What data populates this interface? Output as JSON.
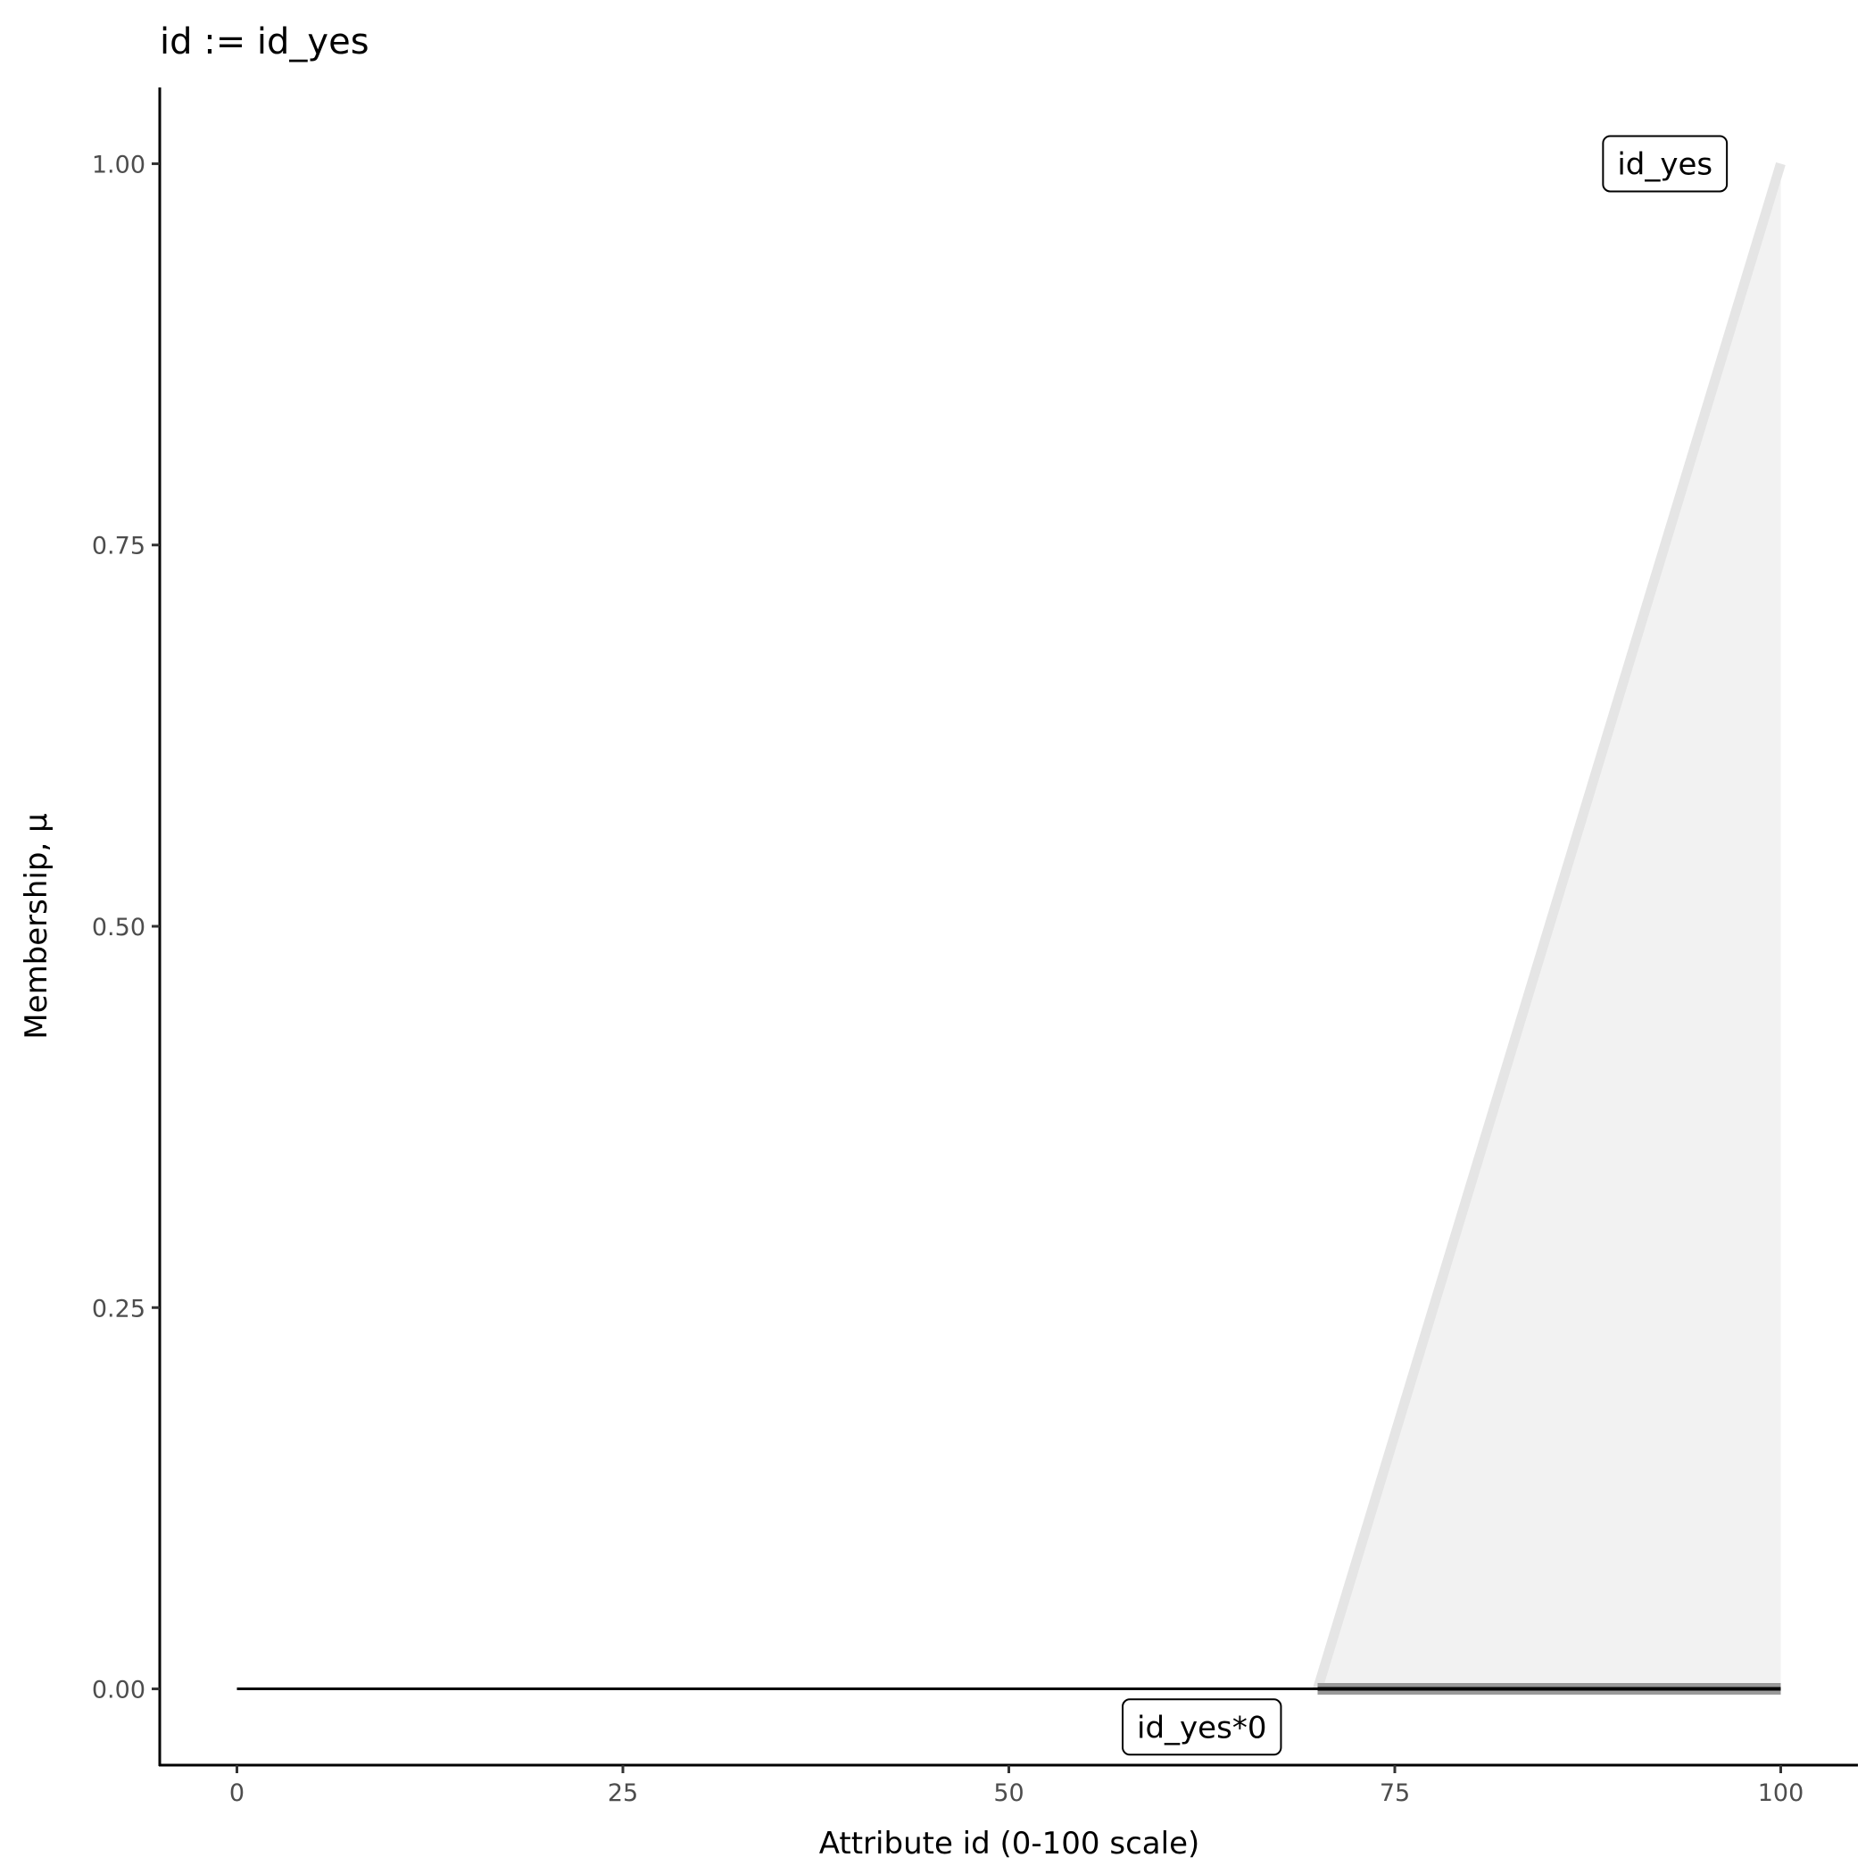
{
  "chart_data": {
    "type": "area",
    "title": "id := id_yes",
    "xlabel": "Attribute id (0-100 scale)",
    "ylabel": "Membership, μ",
    "xlim": [
      -5,
      105
    ],
    "ylim": [
      -0.05,
      1.05
    ],
    "x_ticks": [
      0,
      25,
      50,
      75,
      100
    ],
    "x_tick_labels": [
      "0",
      "25",
      "50",
      "75",
      "100"
    ],
    "y_ticks": [
      0,
      0.25,
      0.5,
      0.75,
      1.0
    ],
    "y_tick_labels": [
      "0.00",
      "0.25",
      "0.50",
      "0.75",
      "1.00"
    ],
    "grid": false,
    "series": [
      {
        "label": "id_yes",
        "x": [
          70,
          100
        ],
        "y": [
          0,
          1
        ],
        "color": "#e5e5e5",
        "fill": "#f2f2f2",
        "label_at": [
          92.5,
          1.0
        ]
      },
      {
        "label": "id_yes*0",
        "x": [
          0,
          100
        ],
        "y": [
          0,
          0
        ],
        "color": "#000000",
        "label_at": [
          62.5,
          -0.025
        ]
      }
    ]
  }
}
